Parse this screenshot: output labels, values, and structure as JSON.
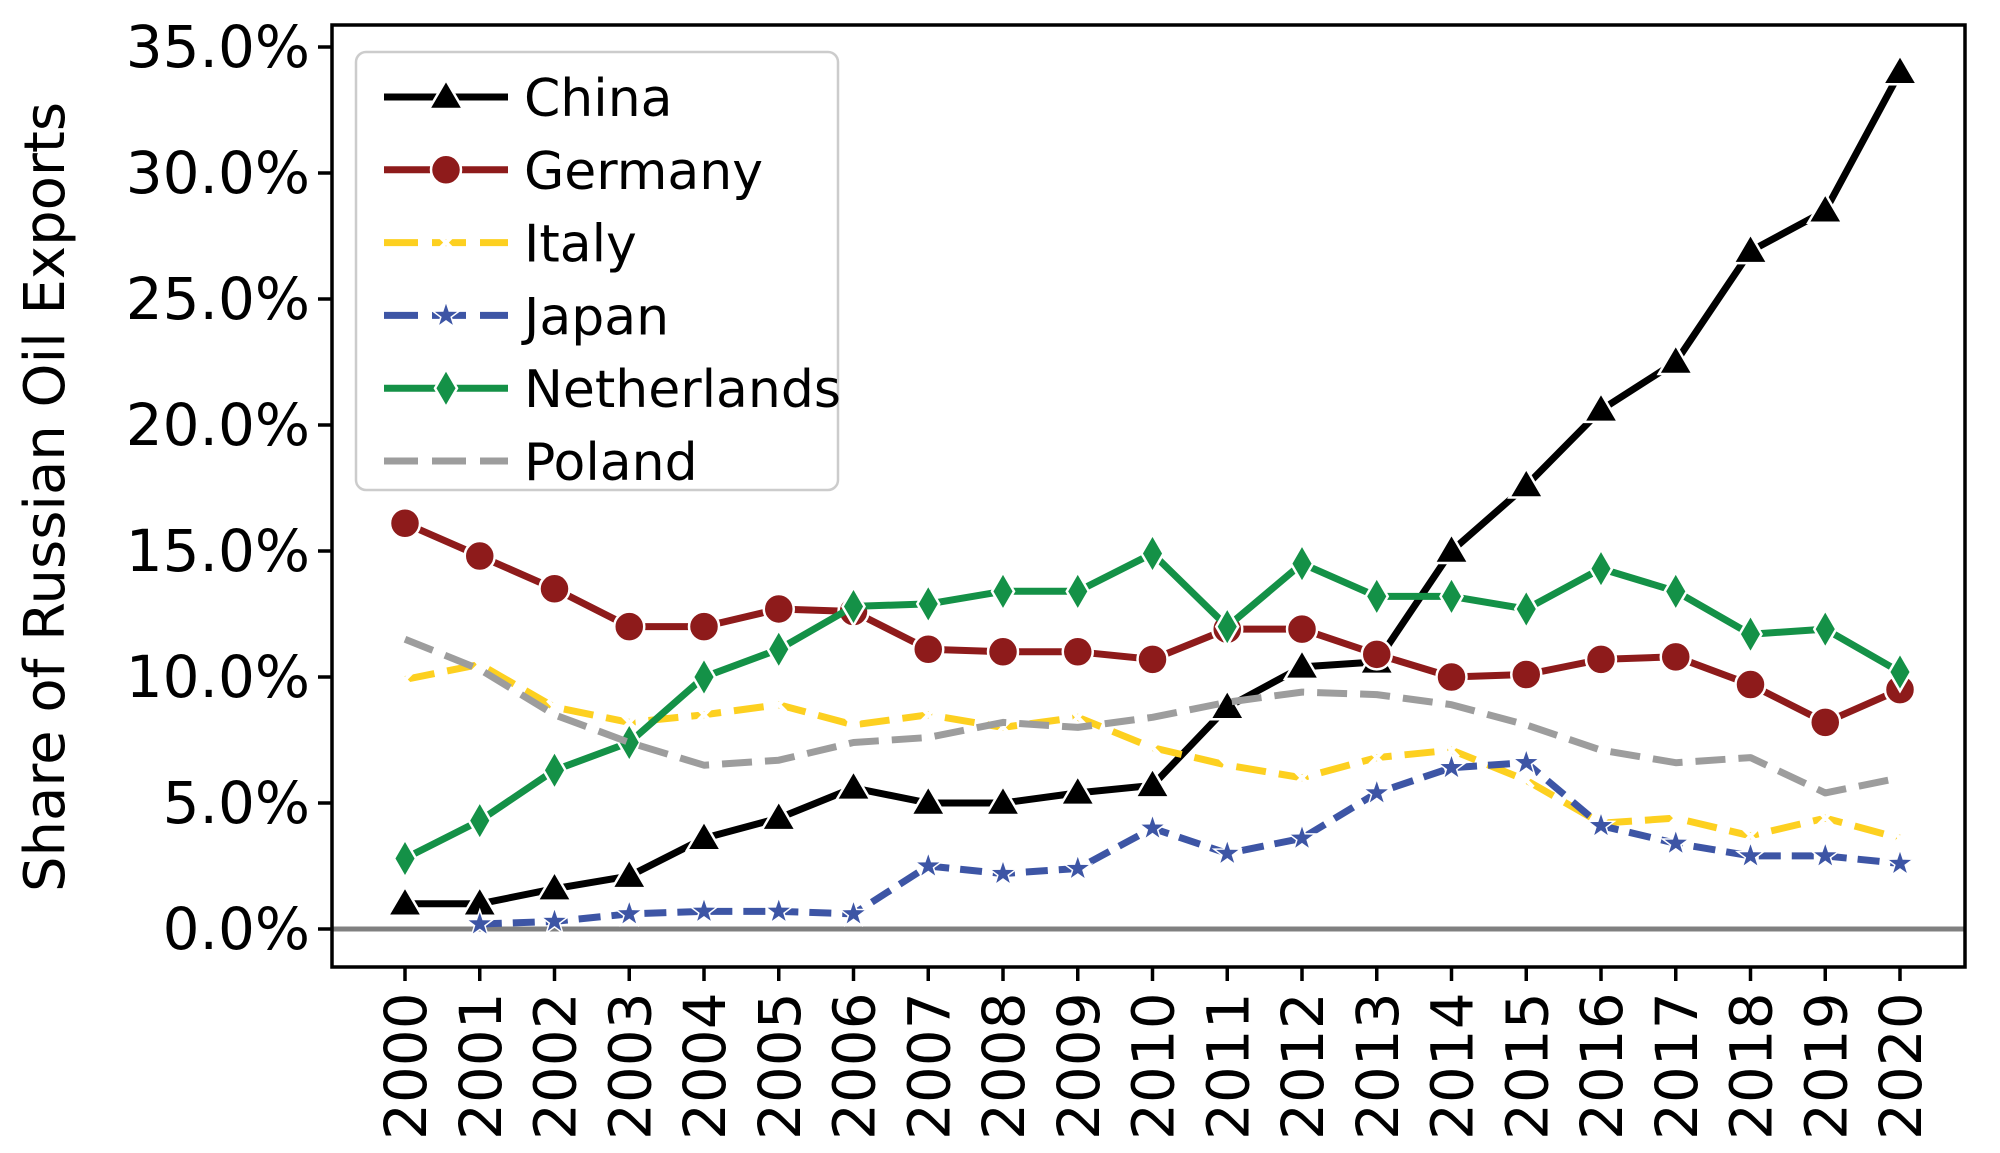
{
  "chart_data": {
    "type": "line",
    "title": "",
    "xlabel": "",
    "ylabel": "Share of Russian Oil Exports",
    "x": [
      2000,
      2001,
      2002,
      2003,
      2004,
      2005,
      2006,
      2007,
      2008,
      2009,
      2010,
      2011,
      2012,
      2013,
      2014,
      2015,
      2016,
      2017,
      2018,
      2019,
      2020
    ],
    "x_tick_labels": [
      "2000",
      "2001",
      "2002",
      "2003",
      "2004",
      "2005",
      "2006",
      "2007",
      "2008",
      "2009",
      "2010",
      "2011",
      "2012",
      "2013",
      "2014",
      "2015",
      "2016",
      "2017",
      "2018",
      "2019",
      "2020"
    ],
    "y_tick_labels": [
      "0.0%",
      "5.0%",
      "10.0%",
      "15.0%",
      "20.0%",
      "25.0%",
      "30.0%",
      "35.0%"
    ],
    "y_tick_values": [
      0,
      5,
      10,
      15,
      20,
      25,
      30,
      35
    ],
    "ylim": [
      -1.6,
      35.9
    ],
    "grid": false,
    "legend_position": "upper-left",
    "zero_line": {
      "y": 0,
      "color": "#808080"
    },
    "series": [
      {
        "name": "China",
        "color": "#000000",
        "marker": "triangle",
        "linestyle": "solid",
        "values": [
          1.0,
          1.0,
          1.6,
          2.1,
          3.6,
          4.4,
          5.6,
          5.0,
          5.0,
          5.4,
          5.7,
          8.8,
          10.4,
          10.6,
          15.0,
          17.6,
          20.6,
          22.5,
          26.9,
          28.5,
          34.0
        ]
      },
      {
        "name": "Germany",
        "color": "#8e1b1b",
        "marker": "circle",
        "linestyle": "solid",
        "values": [
          16.1,
          14.8,
          13.5,
          12.0,
          12.0,
          12.7,
          12.6,
          11.1,
          11.0,
          11.0,
          10.7,
          11.9,
          11.9,
          10.9,
          10.0,
          10.1,
          10.7,
          10.8,
          9.7,
          8.2,
          9.5
        ]
      },
      {
        "name": "Italy",
        "color": "#fdd020",
        "marker": "x-white",
        "linestyle": "dashed",
        "values": [
          9.9,
          10.5,
          8.8,
          8.2,
          8.5,
          8.9,
          8.1,
          8.5,
          8.0,
          8.4,
          7.2,
          6.5,
          6.0,
          6.8,
          7.1,
          5.9,
          4.2,
          4.4,
          3.7,
          4.4,
          3.6
        ]
      },
      {
        "name": "Japan",
        "color": "#3d55a5",
        "marker": "star",
        "linestyle": "dashed",
        "values": [
          null,
          0.2,
          0.3,
          0.6,
          0.7,
          0.7,
          0.6,
          2.5,
          2.2,
          2.4,
          4.0,
          3.0,
          3.6,
          5.4,
          6.4,
          6.6,
          4.1,
          3.4,
          2.9,
          2.9,
          2.6
        ]
      },
      {
        "name": "Netherlands",
        "color": "#149147",
        "marker": "diamond",
        "linestyle": "solid",
        "values": [
          2.8,
          4.3,
          6.3,
          7.4,
          10.0,
          11.1,
          12.8,
          12.9,
          13.4,
          13.4,
          14.9,
          12.0,
          14.5,
          13.2,
          13.2,
          12.7,
          14.3,
          13.4,
          11.7,
          11.9,
          10.2
        ]
      },
      {
        "name": "Poland",
        "color": "#9d9d9d",
        "marker": "none",
        "linestyle": "dashed",
        "values": [
          11.5,
          10.3,
          8.5,
          7.4,
          6.5,
          6.7,
          7.4,
          7.6,
          8.2,
          8.0,
          8.4,
          9.0,
          9.4,
          9.3,
          8.9,
          8.1,
          7.1,
          6.6,
          6.8,
          5.4,
          6.0
        ]
      }
    ]
  }
}
